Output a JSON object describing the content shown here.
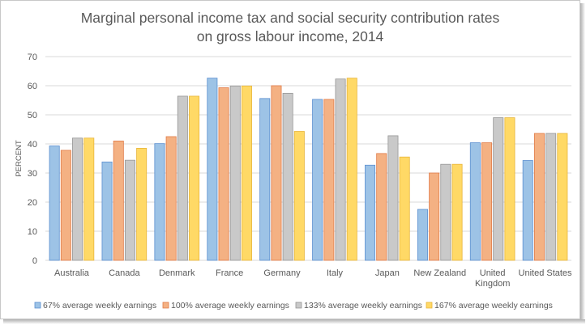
{
  "chart_data": {
    "type": "bar",
    "title": [
      "Marginal personal income tax and social security contribution rates",
      "on gross labour income, 2014"
    ],
    "ylabel": "PERCENT",
    "xlabel": "",
    "ylim": [
      0,
      70
    ],
    "yticks": [
      0,
      10,
      20,
      30,
      40,
      50,
      60,
      70
    ],
    "grid": true,
    "legend_position": "bottom",
    "categories": [
      [
        "Australia"
      ],
      [
        "Canada"
      ],
      [
        "Denmark"
      ],
      [
        "France"
      ],
      [
        "Germany"
      ],
      [
        "Italy"
      ],
      [
        "Japan"
      ],
      [
        "New Zealand"
      ],
      [
        "United",
        "Kingdom"
      ],
      [
        "United States"
      ]
    ],
    "series": [
      {
        "name": "67% average weekly earnings",
        "fill": "#9dc3e6",
        "stroke": "#5b8fd0",
        "values": [
          39.3,
          33.8,
          40.1,
          62.6,
          55.6,
          55.3,
          32.7,
          17.5,
          40.4,
          34.3
        ]
      },
      {
        "name": "100% average weekly earnings",
        "fill": "#f4b183",
        "stroke": "#e07b48",
        "values": [
          37.8,
          41.0,
          42.5,
          59.3,
          60.0,
          55.3,
          36.7,
          30.0,
          40.4,
          43.6
        ]
      },
      {
        "name": "133% average weekly earnings",
        "fill": "#c9c9c9",
        "stroke": "#969696",
        "values": [
          42.0,
          34.4,
          56.4,
          59.9,
          57.4,
          62.3,
          42.8,
          33.0,
          49.0,
          43.6
        ]
      },
      {
        "name": "167% average weekly earnings",
        "fill": "#ffd966",
        "stroke": "#e8b53a",
        "values": [
          42.0,
          38.5,
          56.4,
          59.9,
          44.3,
          62.6,
          35.5,
          33.0,
          49.0,
          43.6
        ]
      }
    ]
  }
}
